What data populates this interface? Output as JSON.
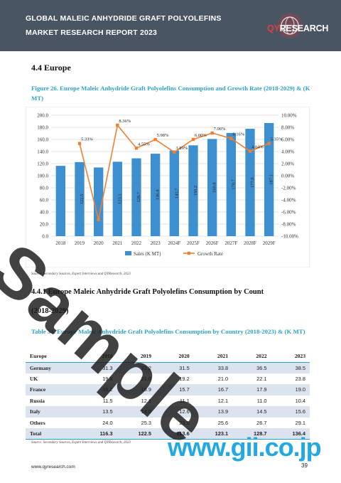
{
  "header": {
    "title": "GLOBAL MALEIC ANHYDRIDE GRAFT POLYOLEFINS MARKET RESEARCH REPORT 2023",
    "logo_prefix": "QY",
    "logo_suffix": "RESEARCH"
  },
  "section": {
    "title": "4.4  Europe"
  },
  "figure": {
    "caption": "Figure 26.   Europe Maleic Anhydride Graft Polyolefins Consumption and Growth Rate (2018-2029) & (K MT)"
  },
  "chart_data": {
    "type": "bar",
    "categories": [
      "2018",
      "2019",
      "2020",
      "2021",
      "2022",
      "2023",
      "2024F",
      "2025F",
      "2026F",
      "2027F",
      "2028F",
      "2029F"
    ],
    "series": [
      {
        "name": "Sales (K MT)",
        "type": "bar",
        "values": [
          116.3,
          122.5,
          113.6,
          123.1,
          128.7,
          136.4,
          141.7,
          150.2,
          160.8,
          170.7,
          177.6,
          187.1
        ]
      },
      {
        "name": "Growth Rate",
        "type": "line",
        "values": [
          null,
          5.33,
          -7.26,
          8.36,
          4.55,
          5.98,
          3.89,
          6.0,
          7.06,
          6.16,
          4.04,
          5.35
        ]
      }
    ],
    "bar_labels": [
      "",
      "122.5",
      "",
      "123.1",
      "128.7",
      "136.4",
      "141.7",
      "150.2",
      "160.8",
      "170.7",
      "177.6",
      "187.1"
    ],
    "rate_labels": [
      "",
      "5.33%",
      "",
      "8.36%",
      "4.55%",
      "5.98%",
      "3.89%",
      "6.00%",
      "7.06%",
      "6.16%",
      "4.04%",
      "5.35%"
    ],
    "y_left_ticks": [
      "0.0",
      "20.0",
      "40.0",
      "60.0",
      "80.0",
      "100.0",
      "120.0",
      "140.0",
      "160.0",
      "180.0",
      "200.0"
    ],
    "y_right_ticks": [
      "-10.00%",
      "-8.00%",
      "-6.00%",
      "-4.00%",
      "-2.00%",
      "0.00%",
      "2.00%",
      "4.00%",
      "6.00%",
      "8.00%",
      "10.00%"
    ],
    "ylim_left": [
      0,
      200
    ],
    "ylim_right": [
      -10,
      10
    ],
    "legend_position": "bottom",
    "colors": {
      "bar": "#3d8fd0",
      "line": "#f07f2f",
      "grid": "#d9d9d9"
    }
  },
  "source_note": "Source: Secondary Sources, Expert Interviews and QYResearch, 2023",
  "subsection": {
    "title": "4.4.1  Europe Maleic Anhydride Graft Polyolefins Consumption by Count",
    "years": "(2018-2029)"
  },
  "table": {
    "caption": "Table 34.   Europe Maleic Anhydride Graft Polyolefins Consumption by Country (2018-2023) & (K MT)",
    "headers": [
      "Europe",
      "2018",
      "2019",
      "2020",
      "2021",
      "2022",
      "2023"
    ],
    "rows": [
      [
        "Germany",
        "31.3",
        "33.2",
        "31.5",
        "33.8",
        "36.5",
        "38.5"
      ],
      [
        "UK",
        "19.8",
        "21.0",
        "19.2",
        "21.0",
        "22.1",
        "23.8"
      ],
      [
        "France",
        "16.2",
        "16.9",
        "15.7",
        "16.7",
        "17.9",
        "19.0"
      ],
      [
        "Russia",
        "11.5",
        "12.1",
        "11.1",
        "12.1",
        "11.0",
        "10.4"
      ],
      [
        "Italy",
        "13.5",
        "14.0",
        "12.6",
        "13.9",
        "14.5",
        "15.6"
      ],
      [
        "Others",
        "24.0",
        "25.3",
        "23.5",
        "25.6",
        "26.7",
        "29.1"
      ],
      [
        "Total",
        "116.3",
        "122.5",
        "113.6",
        "123.1",
        "128.7",
        "136.4"
      ]
    ]
  },
  "table_source": "Source: Secondary Sources, Expert Interviews and QYResearch, 2023",
  "footer": {
    "url": "www.qyresearch.com",
    "page": "39"
  },
  "watermarks": {
    "sample": "Sample",
    "gii": "www.gii.co.jp"
  }
}
